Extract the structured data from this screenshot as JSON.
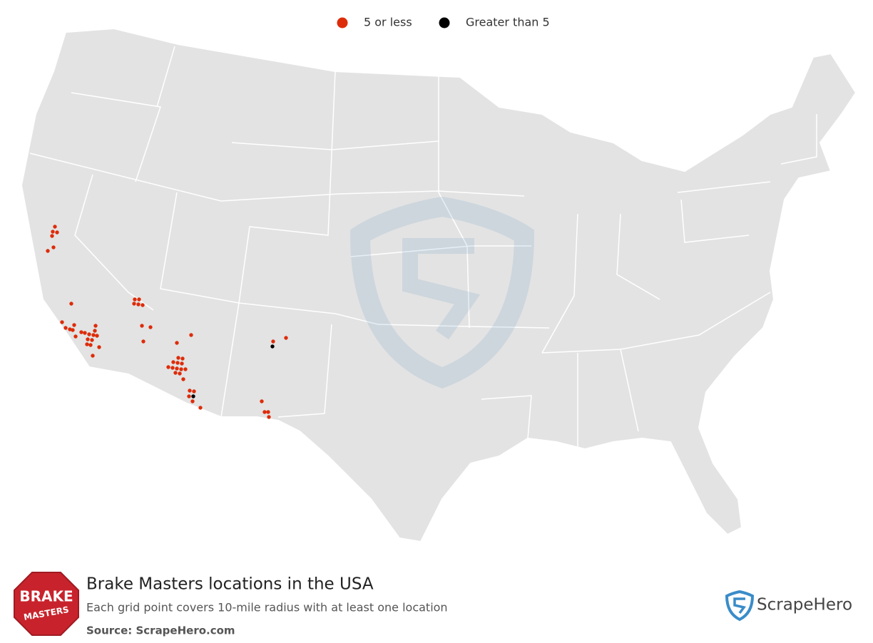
{
  "map": {
    "legend": [
      {
        "label": "5 or less",
        "color": "#dd2c0a"
      },
      {
        "label": "Greater than 5",
        "color": "#000000"
      }
    ]
  },
  "footer": {
    "title": "Brake Masters locations in the USA",
    "subtitle": "Each grid point covers 10-mile radius with at least one location",
    "source": "Source: ScrapeHero.com",
    "logo_top": "BRAKE",
    "logo_bottom": "MASTERS",
    "brand": "ScrapeHero"
  }
}
